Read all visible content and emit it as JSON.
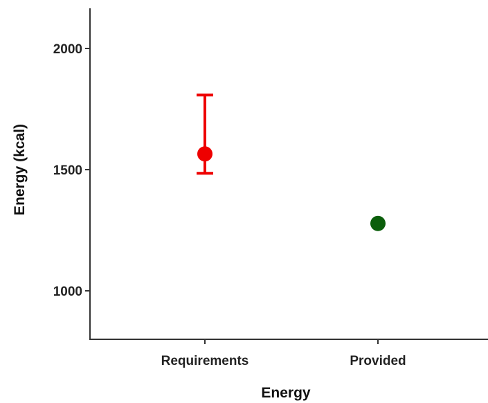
{
  "chart_data": {
    "type": "scatter",
    "title": "",
    "xlabel": "Energy",
    "ylabel": "Energy (kcal)",
    "categories": [
      "Requirements",
      "Provided"
    ],
    "ylim": [
      800,
      2150
    ],
    "yticks": [
      1000,
      1500,
      2000
    ],
    "grid": false,
    "legend": "none",
    "points": [
      {
        "category": "Requirements",
        "value": 1565,
        "error_low": 1485,
        "error_high": 1808,
        "color": "#ee0000"
      },
      {
        "category": "Provided",
        "value": 1278,
        "color": "#0b5e0b"
      }
    ]
  }
}
